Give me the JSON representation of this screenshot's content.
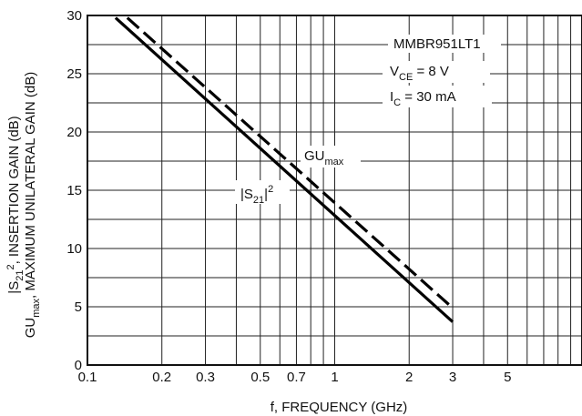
{
  "chart_data": {
    "type": "line",
    "title": "",
    "xlabel": "f, FREQUENCY (GHz)",
    "ylabel_lines": [
      {
        "main": "|S",
        "sub": "21",
        "sup": "2",
        "rest": ", INSERTION GAIN (dB)"
      },
      {
        "main": "GU",
        "sub": "max",
        "rest": ", MAXIMUM UNILATERAL GAIN (dB)"
      }
    ],
    "x_scale": "log",
    "xlim": [
      0.1,
      10
    ],
    "ylim": [
      0,
      30
    ],
    "x_ticks": [
      {
        "value": 0.1,
        "label": "0.1"
      },
      {
        "value": 0.2,
        "label": "0.2"
      },
      {
        "value": 0.3,
        "label": "0.3"
      },
      {
        "value": 0.5,
        "label": "0.5"
      },
      {
        "value": 0.7,
        "label": "0.7"
      },
      {
        "value": 1,
        "label": "1"
      },
      {
        "value": 2,
        "label": "2"
      },
      {
        "value": 3,
        "label": "3"
      },
      {
        "value": 5,
        "label": "5"
      }
    ],
    "x_grid": [
      0.2,
      0.3,
      0.4,
      0.5,
      0.6,
      0.7,
      0.8,
      0.9,
      1,
      2,
      3,
      4,
      5,
      6,
      7,
      8,
      9
    ],
    "y_ticks": [
      0,
      5,
      10,
      15,
      20,
      25,
      30
    ],
    "y_grid_step": 2.5,
    "grid": true,
    "series": [
      {
        "key": "s21",
        "style": "solid",
        "x": [
          0.13,
          3
        ],
        "y": [
          29.8,
          3.7
        ]
      },
      {
        "key": "gumax",
        "style": "dashed",
        "x": [
          0.145,
          3
        ],
        "y": [
          29.8,
          4.9
        ]
      }
    ],
    "annotations": {
      "device": "MMBR951LT1",
      "vce": {
        "main": "V",
        "sub": "CE",
        "rest": " = 8 V"
      },
      "ic": {
        "main": "I",
        "sub": "C",
        "rest": " = 30 mA"
      },
      "gumax_label": {
        "main": "GU",
        "sub": "max"
      },
      "s21_label": {
        "main": "|S",
        "sub": "21",
        "rest": "|",
        "sup": "2"
      }
    }
  }
}
